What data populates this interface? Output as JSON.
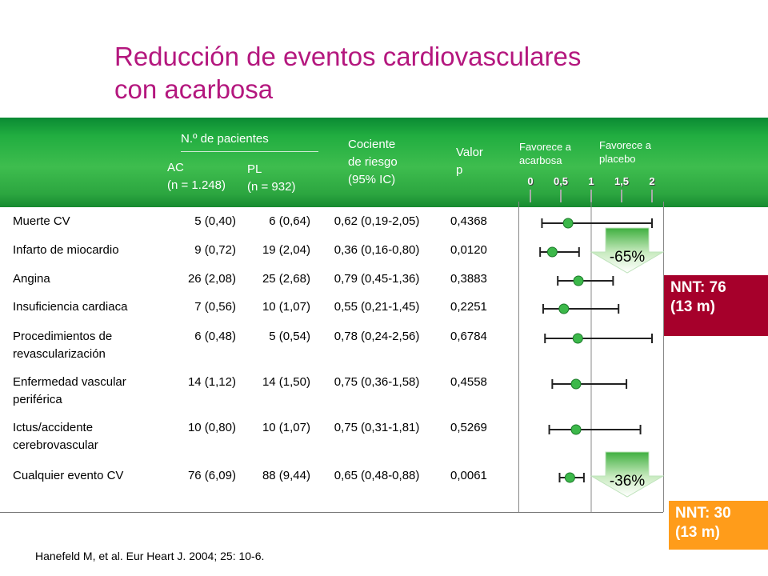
{
  "title": {
    "line1": "Reducción de eventos cardiovasculares",
    "line2": "con acarbosa"
  },
  "header": {
    "patients": "N.º de pacientes",
    "ac": "AC",
    "ac_n": "(n = 1.248)",
    "pl": "PL",
    "pl_n": "(n = 932)",
    "hr1": "Cociente",
    "hr2": "de riesgo",
    "hr3": "(95% IC)",
    "p1": "Valor",
    "p2": "p",
    "fav_ac1": "Favorece a",
    "fav_ac2": "acarbosa",
    "fav_pl1": "Favorece a",
    "fav_pl2": "placebo"
  },
  "chart_data": {
    "type": "forest",
    "x_ticks": [
      "0",
      "0,5",
      "1",
      "1,5",
      "2"
    ],
    "xlim": [
      0,
      2
    ],
    "reference_line": 1,
    "rows": [
      {
        "name": "Muerte CV",
        "ac": "5 (0,40)",
        "pl": "6 (0,64)",
        "hr": "0,62",
        "ci": "(0,19-2,05)",
        "p": "0,4368",
        "est": 0.62,
        "low": 0.19,
        "high": 2.05
      },
      {
        "name": "Infarto de miocardio",
        "ac": "9 (0,72)",
        "pl": "19 (2,04)",
        "hr": "0,36",
        "ci": "(0,16-0,80)",
        "p": "0,0120",
        "est": 0.36,
        "low": 0.16,
        "high": 0.8
      },
      {
        "name": "Angina",
        "ac": "26 (2,08)",
        "pl": "25 (2,68)",
        "hr": "0,79",
        "ci": "(0,45-1,36)",
        "p": "0,3883",
        "est": 0.79,
        "low": 0.45,
        "high": 1.36
      },
      {
        "name": "Insuficiencia cardiaca",
        "ac": "7 (0,56)",
        "pl": "10 (1,07)",
        "hr": "0,55",
        "ci": "(0,21-1,45)",
        "p": "0,2251",
        "est": 0.55,
        "low": 0.21,
        "high": 1.45
      },
      {
        "name": "Procedimientos de revascularización",
        "ac": "6 (0,48)",
        "pl": "5 (0,54)",
        "hr": "0,78",
        "ci": "(0,24-2,56)",
        "p": "0,6784",
        "est": 0.78,
        "low": 0.24,
        "high": 2.56
      },
      {
        "name": "Enfermedad vascular periférica",
        "ac": "14 (1,12)",
        "pl": "14 (1,50)",
        "hr": "0,75",
        "ci": "(0,36-1,58)",
        "p": "0,4558",
        "est": 0.75,
        "low": 0.36,
        "high": 1.58
      },
      {
        "name": "Ictus/accidente cerebrovascular",
        "ac": "10 (0,80)",
        "pl": "10 (1,07)",
        "hr": "0,75",
        "ci": "(0,31-1,81)",
        "p": "0,5269",
        "est": 0.75,
        "low": 0.31,
        "high": 1.81
      },
      {
        "name": "Cualquier evento CV",
        "ac": "76 (6,09)",
        "pl": "88 (9,44)",
        "hr": "0,65",
        "ci": "(0,48-0,88)",
        "p": "0,0061",
        "est": 0.65,
        "low": 0.48,
        "high": 0.88
      }
    ],
    "annotations": [
      "-65%",
      "-36%"
    ]
  },
  "nnt1": {
    "line1": "NNT: 76",
    "line2": "(13 m)"
  },
  "nnt2": {
    "line1": "NNT: 30",
    "line2": "(13 m)"
  },
  "reference": "Hanefeld M, et al. Eur Heart J. 2004; 25: 10-6.",
  "colors": {
    "title": "#b4177e",
    "header_band": "#2cab44",
    "marker": "#3cb84a",
    "nnt1": "#a6002b",
    "nnt2": "#ff9c1a"
  }
}
